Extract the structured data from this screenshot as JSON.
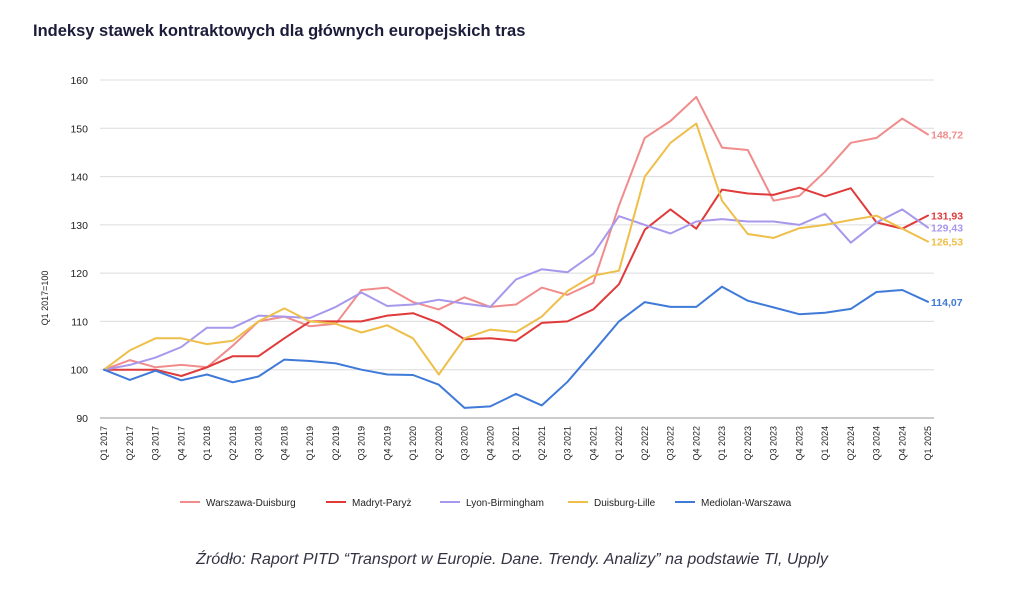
{
  "title": "Indeksy stawek kontraktowych dla głównych europejskich tras",
  "source": "Źródło: Raport PITD “Transport w Europie. Dane. Trendy. Analizy” na podstawie TI, Upply",
  "chart_data": {
    "type": "line",
    "ylabel": "Q1 2017=100",
    "xlabel": "",
    "ylim": [
      90,
      160
    ],
    "yticks": [
      90,
      100,
      110,
      120,
      130,
      140,
      150,
      160
    ],
    "grid": "horizontal",
    "legend_position": "bottom",
    "categories": [
      "Q1 2017",
      "Q2 2017",
      "Q3 2017",
      "Q4 2017",
      "Q1 2018",
      "Q2 2018",
      "Q3 2018",
      "Q4 2018",
      "Q1 2019",
      "Q2 2019",
      "Q3 2019",
      "Q4 2019",
      "Q1 2020",
      "Q2 2020",
      "Q3 2020",
      "Q4 2020",
      "Q1 2021",
      "Q2 2021",
      "Q3 2021",
      "Q4 2021",
      "Q1 2022",
      "Q2 2022",
      "Q3 2022",
      "Q4 2022",
      "Q1 2023",
      "Q2 2023",
      "Q3 2023",
      "Q4 2023",
      "Q1 2024",
      "Q2 2024",
      "Q3 2024",
      "Q4 2024",
      "Q1 2025"
    ],
    "series": [
      {
        "name": "Warszawa-Duisburg",
        "color": "#f08c8c",
        "end_label": "148,72",
        "values": [
          100,
          102,
          100.5,
          101,
          100.5,
          105,
          110,
          111,
          109,
          109.5,
          116.5,
          117,
          114,
          112.5,
          115,
          113,
          113.5,
          117,
          115.5,
          118,
          134,
          148,
          151.5,
          156.5,
          146,
          145.5,
          135,
          136,
          141,
          147,
          148,
          152,
          148.72
        ]
      },
      {
        "name": "Madryt-Paryż",
        "color": "#e03a3a",
        "end_label": "131,93",
        "values": [
          100,
          100,
          100,
          98.7,
          100.5,
          102.8,
          102.8,
          106.5,
          110,
          110,
          110,
          111.2,
          111.7,
          109.7,
          106.3,
          106.5,
          106,
          109.7,
          110,
          112.5,
          117.7,
          129,
          133.2,
          129.2,
          137.3,
          136.5,
          136.2,
          137.7,
          135.9,
          137.6,
          130.5,
          129.2,
          131.93
        ]
      },
      {
        "name": "Lyon-Birmingham",
        "color": "#a898ec",
        "end_label": "129,43",
        "values": [
          100,
          101,
          102.5,
          104.7,
          108.7,
          108.7,
          111.2,
          111,
          110.7,
          113,
          116,
          113.2,
          113.5,
          114.5,
          113.7,
          113,
          118.7,
          120.8,
          120.2,
          124,
          131.8,
          130,
          128.2,
          130.7,
          131.2,
          130.7,
          130.7,
          130,
          132.3,
          126.3,
          130.5,
          133.2,
          129.43
        ]
      },
      {
        "name": "Duisburg-Lille",
        "color": "#eebf4a",
        "end_label": "126,53",
        "values": [
          100,
          104,
          106.5,
          106.5,
          105.3,
          106,
          110,
          112.7,
          110,
          109.5,
          107.7,
          109.2,
          106.5,
          99,
          106.5,
          108.3,
          107.8,
          111,
          116.3,
          119.5,
          120.5,
          140,
          147,
          151,
          135,
          128.1,
          127.3,
          129.3,
          130,
          131,
          131.9,
          129.2,
          126.53
        ]
      },
      {
        "name": "Mediolan-Warszawa",
        "color": "#3f7ad8",
        "end_label": "114,07",
        "values": [
          100,
          97.9,
          99.8,
          97.8,
          99,
          97.4,
          98.6,
          102.1,
          101.8,
          101.3,
          100,
          99,
          98.9,
          96.9,
          92.1,
          92.4,
          95,
          92.6,
          97.5,
          103.7,
          110,
          114,
          113,
          113,
          117.2,
          114.3,
          112.9,
          111.5,
          111.8,
          112.6,
          116.1,
          116.5,
          114.07
        ]
      }
    ]
  }
}
